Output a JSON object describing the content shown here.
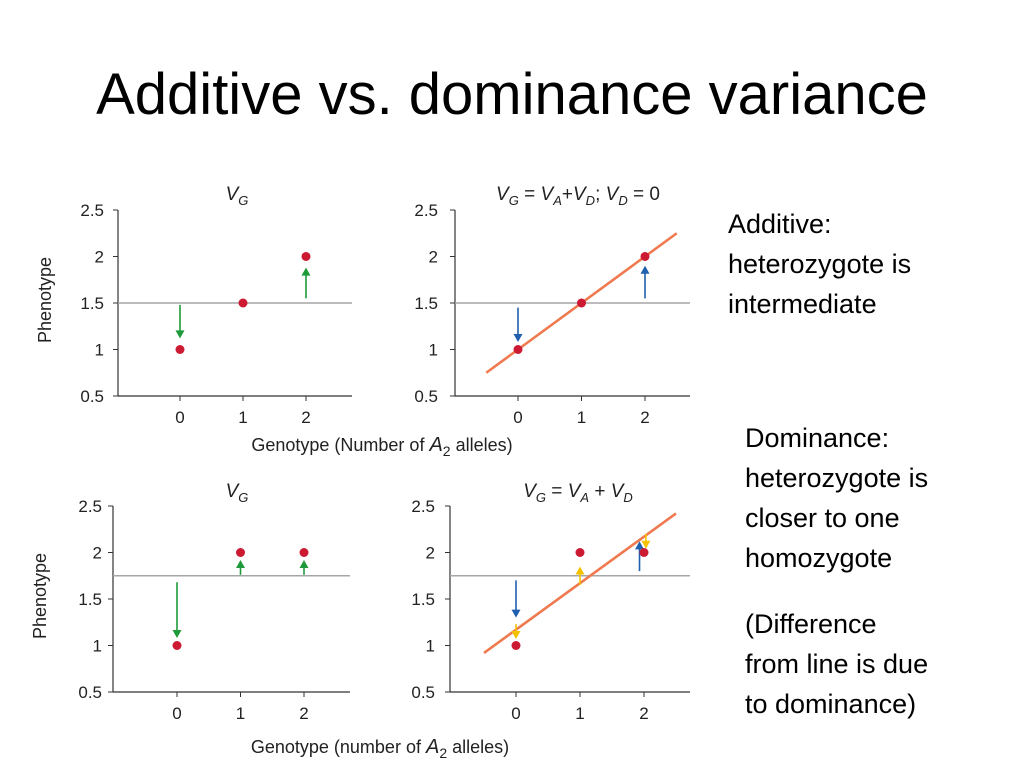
{
  "slide": {
    "title": "Additive vs. dominance variance"
  },
  "notes": {
    "additive": [
      "Additive:",
      "heterozygote is",
      "intermediate"
    ],
    "dominance": [
      "Dominance:",
      "heterozygote is",
      "closer to one",
      "homozygote"
    ],
    "difference": [
      "(Difference",
      "from line is due",
      "to dominance)"
    ]
  },
  "colors": {
    "point": "#cc1a33",
    "mean_line": "#a6a6a6",
    "regression_line": "#f07a4f",
    "arrow_green": "#1e9a3a",
    "arrow_blue": "#1f5fae",
    "arrow_yellow": "#f2c200",
    "axis": "#333333"
  },
  "chart_data": [
    {
      "id": "top-left",
      "type": "scatter",
      "title_main": "V",
      "title_sub": "G",
      "ylabel": "Phenotype",
      "x": [
        0,
        1,
        2
      ],
      "y": [
        1,
        1.5,
        2
      ],
      "xticks": [
        "0",
        "1",
        "2"
      ],
      "yticks": [
        "0.5",
        "1",
        "1.5",
        "2",
        "2.5"
      ],
      "ylim": [
        0.5,
        2.5
      ],
      "xlim": [
        -0.95,
        2.7
      ],
      "mean": 1.5,
      "regression": null,
      "arrows": [
        {
          "x": 0,
          "from": 1.48,
          "to": 1.12,
          "color": "green"
        },
        {
          "x": 2,
          "from": 1.55,
          "to": 1.88,
          "color": "green"
        }
      ]
    },
    {
      "id": "top-right",
      "type": "line",
      "title": "V_G = V_A+V_D; V_D = 0",
      "x": [
        0,
        1,
        2
      ],
      "y": [
        1,
        1.5,
        2
      ],
      "xticks": [
        "0",
        "1",
        "2"
      ],
      "yticks": [
        "0.5",
        "1",
        "1.5",
        "2",
        "2.5"
      ],
      "ylim": [
        0.5,
        2.5
      ],
      "xlim": [
        -1,
        2.7
      ],
      "mean": 1.5,
      "regression": {
        "intercept": 1.0,
        "slope": 0.5,
        "from": -0.5,
        "to": 2.5
      },
      "arrows": [
        {
          "x": 0,
          "from": 1.45,
          "to": 1.08,
          "color": "blue"
        },
        {
          "x": 2,
          "from": 1.55,
          "to": 1.9,
          "color": "blue"
        }
      ]
    },
    {
      "id": "bottom-left",
      "type": "scatter",
      "title_main": "V",
      "title_sub": "G",
      "ylabel": "Phenotype",
      "x": [
        0,
        1,
        2
      ],
      "y": [
        1,
        2,
        2
      ],
      "xticks": [
        "0",
        "1",
        "2"
      ],
      "yticks": [
        "0.5",
        "1",
        "1.5",
        "2",
        "2.5"
      ],
      "ylim": [
        0.5,
        2.5
      ],
      "xlim": [
        -0.95,
        2.7
      ],
      "mean": 1.75,
      "regression": null,
      "arrows": [
        {
          "x": 0,
          "from": 1.68,
          "to": 1.08,
          "color": "green"
        },
        {
          "x": 1,
          "from": 1.76,
          "to": 1.92,
          "color": "green"
        },
        {
          "x": 2,
          "from": 1.76,
          "to": 1.92,
          "color": "green"
        }
      ]
    },
    {
      "id": "bottom-right",
      "type": "line",
      "title": "V_G = V_A + V_D",
      "x": [
        0,
        1,
        2
      ],
      "y": [
        1,
        2,
        2
      ],
      "xticks": [
        "0",
        "1",
        "2"
      ],
      "yticks": [
        "0.5",
        "1",
        "1.5",
        "2",
        "2.5"
      ],
      "ylim": [
        0.5,
        2.5
      ],
      "xlim": [
        -1,
        2.7
      ],
      "mean": 1.75,
      "regression": {
        "intercept": 1.17,
        "slope": 0.5,
        "from": -0.5,
        "to": 2.5
      },
      "arrows": [
        {
          "x": 0,
          "from": 1.7,
          "to": 1.3,
          "color": "blue"
        },
        {
          "x": 0,
          "from": 1.23,
          "to": 1.07,
          "color": "yellow"
        },
        {
          "x": 1,
          "from": 1.65,
          "to": 1.85,
          "color": "yellow"
        },
        {
          "x": 1.93,
          "from": 1.8,
          "to": 2.12,
          "color": "blue"
        },
        {
          "x": 2.03,
          "from": 2.2,
          "to": 2.04,
          "color": "yellow"
        }
      ]
    }
  ],
  "shared_xlabels": {
    "top": {
      "prefix": "Genotype (Number of",
      "var": "A",
      "sub": "2",
      "suffix": "alleles)"
    },
    "bottom": {
      "prefix": "Genotype (number of",
      "var": "A",
      "sub": "2",
      "suffix": "alleles)"
    }
  }
}
